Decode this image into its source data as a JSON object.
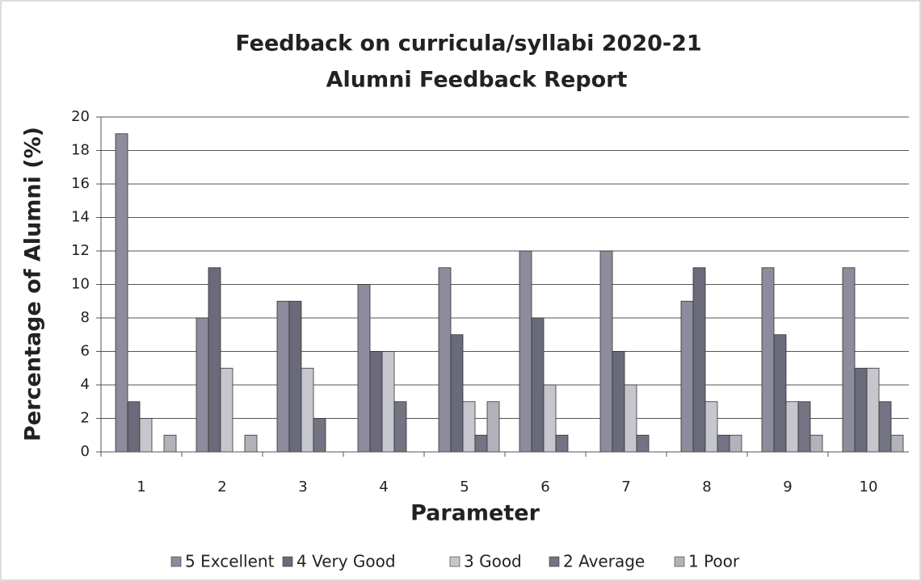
{
  "chart_data": {
    "type": "bar",
    "title": "Feedback on curricula/syllabi 2020-21",
    "subtitle": "Alumni Feedback Report",
    "x_label": "Parameter",
    "y_label": "Percentage of  Alumni (%)",
    "categories": [
      "1",
      "2",
      "3",
      "4",
      "5",
      "6",
      "7",
      "8",
      "9",
      "10"
    ],
    "series": [
      {
        "name": "5 Excellent",
        "color": "#8c8c9c",
        "values": [
          19,
          8,
          9,
          10,
          11,
          12,
          12,
          9,
          11,
          11
        ]
      },
      {
        "name": "4 Very Good",
        "color": "#6a6a7a",
        "values": [
          3,
          11,
          9,
          6,
          7,
          8,
          6,
          11,
          7,
          5
        ]
      },
      {
        "name": "3 Good",
        "color": "#c6c6ce",
        "values": [
          2,
          5,
          5,
          6,
          3,
          4,
          4,
          3,
          3,
          5
        ]
      },
      {
        "name": "2 Average",
        "color": "#737383",
        "values": [
          0,
          0,
          2,
          3,
          1,
          1,
          1,
          1,
          3,
          3
        ]
      },
      {
        "name": "1 Poor",
        "color": "#b2b2ba",
        "values": [
          1,
          1,
          0,
          0,
          3,
          0,
          0,
          1,
          1,
          1
        ]
      }
    ],
    "ylim": [
      0,
      20
    ],
    "yticks": [
      0,
      2,
      4,
      6,
      8,
      10,
      12,
      14,
      16,
      18,
      20
    ],
    "grid": true,
    "legend": "bottom"
  }
}
